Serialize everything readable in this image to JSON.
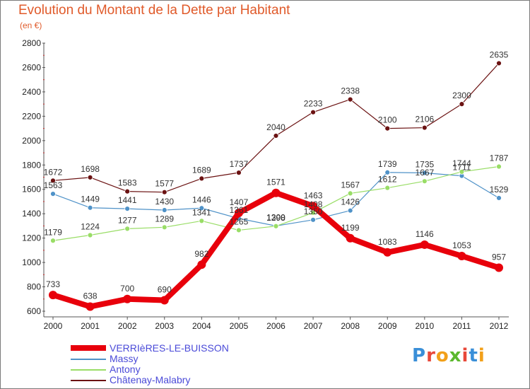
{
  "header": {
    "title": "Evolution du Montant de la Dette par Habitant",
    "subtitle": "(en €)"
  },
  "logo": {
    "text": "Proxiti",
    "colors": [
      "#3a8fd8",
      "#e8483a",
      "#f2a019",
      "#5cb82e",
      "#e8483a",
      "#3a8fd8",
      "#f2a019"
    ]
  },
  "chart_data": {
    "type": "line",
    "title": "Evolution du Montant de la Dette par Habitant",
    "subtitle": "(en €)",
    "xlabel": "",
    "ylabel": "",
    "x": [
      "2000",
      "2001",
      "2002",
      "2003",
      "2004",
      "2005",
      "2006",
      "2007",
      "2008",
      "2009",
      "2010",
      "2011",
      "2012"
    ],
    "ylim": [
      600,
      2800
    ],
    "yticks": [
      600,
      800,
      1000,
      1200,
      1400,
      1600,
      1800,
      2000,
      2200,
      2400,
      2600,
      2800
    ],
    "grid": false,
    "legend": "bottom-left",
    "series": [
      {
        "name": "VERRIèRES-LE-BUISSON",
        "color": "#e8000b",
        "values": [
          733,
          638,
          700,
          690,
          982,
          1407,
          1571,
          1463,
          1199,
          1083,
          1146,
          1053,
          957
        ],
        "labels": [
          "733",
          "638",
          "700",
          "690",
          "982",
          "1407",
          "1571",
          "1463",
          "1199",
          "1083",
          "1146",
          "1053",
          "957"
        ]
      },
      {
        "name": "Massy",
        "color": "#4f92c8",
        "values": [
          1563,
          1449,
          1441,
          1430,
          1446,
          1361,
          1300,
          1350,
          1426,
          1739,
          1735,
          1711,
          1529
        ],
        "labels": [
          "1563",
          "1449",
          "1441",
          "1430",
          "1446",
          "1361",
          "1300",
          "1350",
          "1426",
          "1739",
          "1735",
          "1711",
          "1529"
        ]
      },
      {
        "name": "Antony",
        "color": "#99dd66",
        "values": [
          1179,
          1224,
          1277,
          1289,
          1341,
          1265,
          1298,
          1408,
          1567,
          1612,
          1667,
          1744,
          1787
        ],
        "labels": [
          "1179",
          "1224",
          "1277",
          "1289",
          "1341",
          "1265",
          "1298",
          "1408",
          "1567",
          "1612",
          "1667",
          "1744",
          "1787"
        ]
      },
      {
        "name": "Châtenay-Malabry",
        "color": "#6b1212",
        "values": [
          1672,
          1698,
          1583,
          1577,
          1689,
          1737,
          2040,
          2233,
          2338,
          2100,
          2106,
          2300,
          2635
        ],
        "labels": [
          "1672",
          "1698",
          "1583",
          "1577",
          "1689",
          "1737",
          "2040",
          "2233",
          "2338",
          "2100",
          "2106",
          "2300",
          "2635"
        ]
      }
    ]
  }
}
